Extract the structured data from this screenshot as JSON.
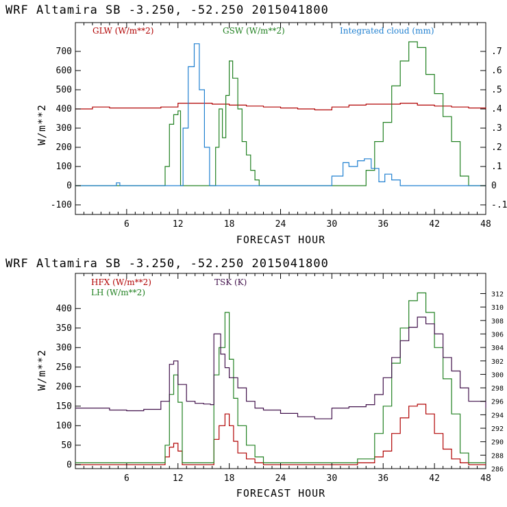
{
  "charts": [
    {
      "title": "WRF  Altamira  SB  -3.250, -52.250  2015041800",
      "xlabel": "FORECAST HOUR",
      "ylabel": "W/m**2",
      "legend": [
        {
          "label": "GLW (W/m**2)",
          "color": "#b00000"
        },
        {
          "label": "GSW (W/m**2)",
          "color": "#208020"
        },
        {
          "label": "Integrated cloud (mm)",
          "color": "#1e7fd0"
        }
      ]
    },
    {
      "title": "WRF  Altamira  SB  -3.250, -52.250  2015041800",
      "xlabel": "FORECAST HOUR",
      "ylabel": "W/m**2",
      "legend": [
        {
          "label": "HFX (W/m**2)",
          "color": "#b00000"
        },
        {
          "label": "LH  (W/m**2)",
          "color": "#208020"
        },
        {
          "label": "TSK (K)",
          "color": "#40104a"
        }
      ]
    }
  ],
  "chart_data": [
    {
      "type": "line",
      "title": "WRF  Altamira  SB  -3.250, -52.250  2015041800",
      "xlabel": "FORECAST HOUR",
      "ylabel": "W/m**2",
      "xlim": [
        0,
        48
      ],
      "ylim": [
        -150,
        850
      ],
      "xticks": [
        6,
        12,
        18,
        24,
        30,
        36,
        42,
        48
      ],
      "yticks": [
        -100,
        0,
        100,
        200,
        300,
        400,
        500,
        600,
        700
      ],
      "y2lim": [
        -0.15,
        0.85
      ],
      "y2ticks": [
        -0.1,
        0,
        0.1,
        0.2,
        0.3,
        0.4,
        0.5,
        0.6,
        0.7
      ],
      "y2ticklabels": [
        "-.1",
        "0",
        ".1",
        ".2",
        ".3",
        ".4",
        ".5",
        ".6",
        ".7"
      ],
      "step": true,
      "series": [
        {
          "name": "GLW (W/m**2)",
          "axis": "left",
          "color": "#b00000",
          "x": [
            0,
            2,
            4,
            6,
            8,
            10,
            12,
            14,
            16,
            18,
            20,
            22,
            24,
            26,
            28,
            30,
            32,
            34,
            36,
            38,
            40,
            42,
            44,
            46,
            48
          ],
          "y": [
            400,
            410,
            405,
            405,
            405,
            410,
            430,
            430,
            425,
            420,
            415,
            410,
            405,
            400,
            395,
            410,
            420,
            425,
            425,
            430,
            420,
            415,
            410,
            405,
            400
          ]
        },
        {
          "name": "GSW (W/m**2)",
          "axis": "left",
          "color": "#208020",
          "x": [
            0,
            9.5,
            10.5,
            11,
            11.5,
            12,
            12.3,
            16,
            16.4,
            16.8,
            17.2,
            17.6,
            18,
            18.4,
            19,
            19.5,
            20,
            20.5,
            21,
            21.5,
            28,
            33,
            34,
            35,
            36,
            37,
            38,
            39,
            40,
            41,
            42,
            43,
            44,
            45,
            46,
            48
          ],
          "y": [
            0,
            0,
            100,
            320,
            370,
            390,
            0,
            0,
            200,
            400,
            250,
            470,
            650,
            560,
            400,
            230,
            160,
            80,
            30,
            0,
            0,
            0,
            80,
            230,
            330,
            520,
            650,
            750,
            720,
            580,
            480,
            360,
            230,
            50,
            0,
            0
          ]
        },
        {
          "name": "Integrated cloud (mm)",
          "axis": "right",
          "color": "#1e7fd0",
          "x": [
            0,
            4.5,
            4.8,
            5.2,
            12,
            12.6,
            13.2,
            13.9,
            14.5,
            15.1,
            15.7,
            28,
            30,
            31.3,
            32,
            33,
            33.8,
            34.6,
            35.5,
            36.2,
            37,
            38,
            48
          ],
          "y": [
            0,
            0,
            0.015,
            0,
            0,
            0.3,
            0.62,
            0.74,
            0.5,
            0.2,
            0,
            0,
            0.05,
            0.12,
            0.1,
            0.13,
            0.14,
            0.09,
            0.02,
            0.06,
            0.03,
            0,
            0
          ]
        }
      ]
    },
    {
      "type": "line",
      "title": "WRF  Altamira  SB  -3.250, -52.250  2015041800",
      "xlabel": "FORECAST HOUR",
      "ylabel": "W/m**2",
      "xlim": [
        0,
        48
      ],
      "ylim": [
        -10,
        490
      ],
      "xticks": [
        6,
        12,
        18,
        24,
        30,
        36,
        42,
        48
      ],
      "yticks": [
        0,
        50,
        100,
        150,
        200,
        250,
        300,
        350,
        400
      ],
      "y2lim": [
        286,
        315
      ],
      "y2ticks": [
        286,
        288,
        290,
        292,
        294,
        296,
        298,
        300,
        302,
        304,
        306,
        308,
        310,
        312
      ],
      "step": true,
      "series": [
        {
          "name": "HFX (W/m**2)",
          "axis": "left",
          "color": "#b00000",
          "x": [
            0,
            10,
            10.5,
            11,
            11.5,
            12,
            12.5,
            15.8,
            16.2,
            16.8,
            17.5,
            18,
            18.5,
            19,
            20,
            21,
            22,
            30,
            33,
            35,
            36,
            37,
            38,
            39,
            40,
            41,
            42,
            43,
            44,
            45,
            46,
            48
          ],
          "y": [
            0,
            0,
            20,
            45,
            55,
            35,
            0,
            0,
            65,
            100,
            130,
            100,
            60,
            30,
            15,
            5,
            0,
            0,
            5,
            20,
            35,
            80,
            120,
            150,
            155,
            130,
            80,
            40,
            15,
            5,
            0,
            0
          ]
        },
        {
          "name": "LH  (W/m**2)",
          "axis": "left",
          "color": "#208020",
          "x": [
            0,
            10,
            10.5,
            11,
            11.5,
            12,
            12.5,
            15.8,
            16.2,
            16.8,
            17.5,
            18,
            18.5,
            19,
            20,
            21,
            22,
            30,
            33,
            35,
            36,
            37,
            38,
            39,
            40,
            41,
            42,
            43,
            44,
            45,
            46,
            48
          ],
          "y": [
            5,
            5,
            50,
            180,
            230,
            160,
            5,
            5,
            230,
            300,
            390,
            270,
            170,
            100,
            50,
            20,
            5,
            5,
            15,
            80,
            150,
            260,
            350,
            420,
            440,
            390,
            300,
            220,
            130,
            30,
            5,
            5
          ]
        },
        {
          "name": "TSK (K)",
          "axis": "right",
          "color": "#40104a",
          "x": [
            0,
            2,
            4,
            6,
            8,
            10,
            11,
            11.5,
            12,
            13,
            14,
            15,
            15.8,
            16.2,
            17,
            17.5,
            18,
            19,
            20,
            21,
            22,
            24,
            26,
            28,
            30,
            32,
            34,
            35,
            36,
            37,
            38,
            39,
            40,
            41,
            42,
            43,
            44,
            45,
            46,
            48
          ],
          "y": [
            295,
            295,
            294.7,
            294.6,
            294.8,
            296,
            301.5,
            302,
            298.5,
            296,
            295.7,
            295.6,
            295.5,
            306,
            303,
            301,
            299.5,
            298,
            296,
            295,
            294.7,
            294.2,
            293.7,
            293.4,
            295,
            295.2,
            295.5,
            297,
            299.5,
            302.5,
            305,
            307,
            308.5,
            307.5,
            306,
            302.5,
            300.5,
            298,
            296,
            295
          ]
        }
      ]
    }
  ]
}
